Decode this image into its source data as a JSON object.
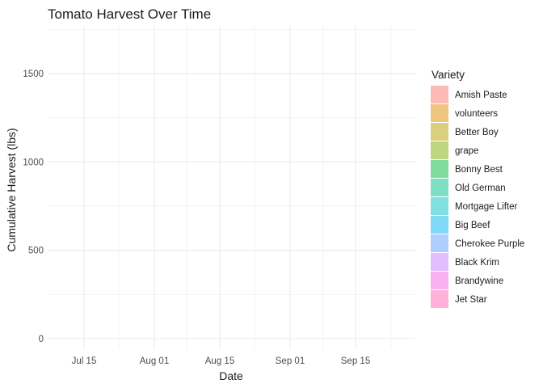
{
  "chart_data": {
    "type": "area",
    "title": "Tomato Harvest Over Time",
    "xlabel": "Date",
    "ylabel": "Cumulative Harvest (lbs)",
    "x_ticks": [
      "Jul 15",
      "Aug 01",
      "Aug 15",
      "Sep 01",
      "Sep 15"
    ],
    "y_ticks": [
      0,
      500,
      1000,
      1500
    ],
    "ylim": [
      -60,
      1770
    ],
    "grid": true,
    "legend_title": "Variety",
    "legend_position": "right",
    "series": [
      {
        "name": "Amish Paste",
        "color": "#F8766D"
      },
      {
        "name": "volunteers",
        "color": "#DE8C00"
      },
      {
        "name": "Better Boy",
        "color": "#B79F00"
      },
      {
        "name": "grape",
        "color": "#7CAE00"
      },
      {
        "name": "Bonny Best",
        "color": "#00BA38"
      },
      {
        "name": "Old German",
        "color": "#00C08B"
      },
      {
        "name": "Mortgage Lifter",
        "color": "#00BFC4"
      },
      {
        "name": "Big Beef",
        "color": "#00B4F0"
      },
      {
        "name": "Cherokee Purple",
        "color": "#619CFF"
      },
      {
        "name": "Black Krim",
        "color": "#C77CFF"
      },
      {
        "name": "Brandywine",
        "color": "#F564E3"
      },
      {
        "name": "Jet Star",
        "color": "#FF64B0"
      }
    ]
  }
}
